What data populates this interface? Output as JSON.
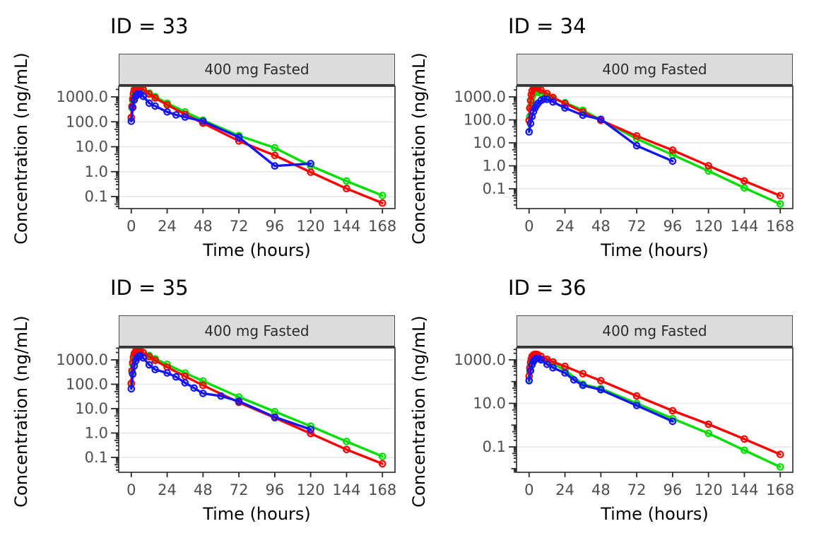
{
  "chart_data": [
    {
      "type": "line",
      "title": "ID = 33",
      "strip": "400 mg Fasted",
      "xlabel": "Time (hours)",
      "ylabel": "Concentration (ng/mL)",
      "x_scale": "linear",
      "y_scale": "log10",
      "grid": "horizontal-major",
      "legend": "none",
      "xlim": [
        -8.4,
        176.4
      ],
      "ylim": [
        0.033,
        2670
      ],
      "xticks": [
        0,
        24,
        48,
        72,
        96,
        120,
        144,
        168
      ],
      "yticks": [
        {
          "label": "1000.0",
          "value": 1000
        },
        {
          "label": "100.0",
          "value": 100
        },
        {
          "label": "10.0",
          "value": 10
        },
        {
          "label": "1.0",
          "value": 1
        },
        {
          "label": "0.1",
          "value": 0.1
        }
      ],
      "series": [
        {
          "name": "green-prediction",
          "color": "#00DD00",
          "x": [
            0,
            0.5,
            1,
            1.5,
            2,
            3,
            4,
            5,
            6,
            8,
            12,
            16,
            24,
            36,
            48,
            72,
            96,
            120,
            144,
            168
          ],
          "y": [
            140,
            360,
            720,
            1150,
            1650,
            2150,
            2400,
            2420,
            2320,
            2000,
            1420,
            1020,
            560,
            250,
            115,
            28,
            9,
            1.7,
            0.42,
            0.11
          ]
        },
        {
          "name": "red-prediction",
          "color": "#FF0000",
          "x": [
            0,
            0.5,
            1,
            1.5,
            2,
            3,
            4,
            5,
            6,
            8,
            12,
            16,
            24,
            36,
            48,
            72,
            96,
            120,
            144,
            168
          ],
          "y": [
            150,
            420,
            850,
            1400,
            1900,
            2350,
            2500,
            2450,
            2300,
            1900,
            1300,
            900,
            480,
            200,
            88,
            17,
            4.5,
            0.95,
            0.21,
            0.055
          ]
        },
        {
          "name": "blue-observed",
          "color": "#1414F5",
          "x": [
            0,
            1,
            2,
            3,
            4,
            5,
            6,
            8,
            12,
            16,
            24,
            30,
            36,
            48,
            72,
            96,
            120
          ],
          "y": [
            105,
            380,
            750,
            1050,
            1250,
            1320,
            1280,
            1050,
            560,
            430,
            250,
            190,
            155,
            105,
            24,
            1.7,
            2.1
          ]
        }
      ]
    },
    {
      "type": "line",
      "title": "ID = 34",
      "strip": "400 mg Fasted",
      "xlabel": "Time (hours)",
      "ylabel": "Concentration (ng/mL)",
      "x_scale": "linear",
      "y_scale": "log10",
      "grid": "horizontal-major",
      "legend": "none",
      "xlim": [
        -8.4,
        176.4
      ],
      "ylim": [
        0.0138,
        2900
      ],
      "xticks": [
        0,
        24,
        48,
        72,
        96,
        120,
        144,
        168
      ],
      "yticks": [
        {
          "label": "1000.0",
          "value": 1000
        },
        {
          "label": "100.0",
          "value": 100
        },
        {
          "label": "10.0",
          "value": 10
        },
        {
          "label": "1.0",
          "value": 1
        },
        {
          "label": "0.1",
          "value": 0.1
        }
      ],
      "series": [
        {
          "name": "green-prediction",
          "color": "#00DD00",
          "x": [
            0,
            0.5,
            1,
            1.5,
            2,
            3,
            4,
            5,
            6,
            8,
            12,
            16,
            24,
            36,
            48,
            72,
            96,
            120,
            144,
            168
          ],
          "y": [
            30,
            140,
            380,
            680,
            1000,
            1380,
            1600,
            1650,
            1600,
            1420,
            1100,
            820,
            560,
            260,
            100,
            15,
            3.0,
            0.6,
            0.11,
            0.022
          ]
        },
        {
          "name": "red-prediction",
          "color": "#FF0000",
          "x": [
            0,
            0.5,
            1,
            1.5,
            2,
            3,
            4,
            5,
            6,
            8,
            12,
            16,
            24,
            36,
            48,
            72,
            96,
            120,
            144,
            168
          ],
          "y": [
            95,
            320,
            700,
            1250,
            1800,
            2350,
            2600,
            2550,
            2400,
            2000,
            1400,
            950,
            520,
            220,
            95,
            20,
            4.8,
            1.0,
            0.22,
            0.05
          ]
        },
        {
          "name": "blue-observed",
          "color": "#1414F5",
          "x": [
            0,
            1,
            2,
            3,
            4,
            5,
            6,
            8,
            10,
            12,
            16,
            24,
            36,
            48,
            72,
            96
          ],
          "y": [
            30,
            70,
            140,
            230,
            330,
            430,
            530,
            700,
            800,
            780,
            600,
            330,
            160,
            105,
            7.5,
            1.6
          ]
        }
      ]
    },
    {
      "type": "line",
      "title": "ID = 35",
      "strip": "400 mg Fasted",
      "xlabel": "Time (hours)",
      "ylabel": "Concentration (ng/mL)",
      "x_scale": "linear",
      "y_scale": "log10",
      "grid": "horizontal-major",
      "legend": "none",
      "xlim": [
        -8.4,
        176.4
      ],
      "ylim": [
        0.0245,
        3100
      ],
      "xticks": [
        0,
        24,
        48,
        72,
        96,
        120,
        144,
        168
      ],
      "yticks": [
        {
          "label": "1000.0",
          "value": 1000
        },
        {
          "label": "100.0",
          "value": 100
        },
        {
          "label": "10.0",
          "value": 10
        },
        {
          "label": "1.0",
          "value": 1
        },
        {
          "label": "0.1",
          "value": 0.1
        }
      ],
      "series": [
        {
          "name": "green-prediction",
          "color": "#00DD00",
          "x": [
            0,
            0.5,
            1,
            1.5,
            2,
            3,
            4,
            5,
            6,
            8,
            12,
            16,
            24,
            36,
            48,
            72,
            96,
            120,
            144,
            168
          ],
          "y": [
            100,
            310,
            660,
            1080,
            1550,
            2050,
            2280,
            2300,
            2250,
            2000,
            1500,
            1100,
            650,
            290,
            135,
            30,
            7.5,
            1.9,
            0.45,
            0.11
          ]
        },
        {
          "name": "red-prediction",
          "color": "#FF0000",
          "x": [
            0,
            0.5,
            1,
            1.5,
            2,
            3,
            4,
            5,
            6,
            8,
            12,
            16,
            24,
            36,
            48,
            72,
            96,
            120,
            144,
            168
          ],
          "y": [
            110,
            360,
            780,
            1300,
            1800,
            2300,
            2550,
            2500,
            2350,
            1950,
            1350,
            950,
            500,
            210,
            90,
            18,
            4.2,
            0.95,
            0.21,
            0.055
          ]
        },
        {
          "name": "blue-observed",
          "color": "#1414F5",
          "x": [
            0,
            1,
            2,
            3,
            4,
            5,
            6,
            8,
            12,
            16,
            24,
            30,
            36,
            42,
            48,
            60,
            72,
            96,
            120
          ],
          "y": [
            65,
            260,
            560,
            900,
            1200,
            1400,
            1450,
            1200,
            620,
            400,
            290,
            200,
            115,
            70,
            42,
            33,
            20,
            4.5,
            1.4
          ]
        }
      ]
    },
    {
      "type": "line",
      "title": "ID = 36",
      "strip": "400 mg Fasted",
      "xlabel": "Time (hours)",
      "ylabel": "Concentration (ng/mL)",
      "x_scale": "linear",
      "y_scale": "log10",
      "grid": "horizontal-major",
      "legend": "none",
      "xlim": [
        -8.4,
        176.4
      ],
      "ylim": [
        0.0068,
        3550
      ],
      "xticks": [
        0,
        24,
        48,
        72,
        96,
        120,
        144,
        168
      ],
      "yticks": [
        {
          "label": "1000.0",
          "value": 1000
        },
        {
          "label": "10.0",
          "value": 10
        },
        {
          "label": "0.1",
          "value": 0.1
        }
      ],
      "series": [
        {
          "name": "green-prediction",
          "color": "#00DD00",
          "x": [
            0,
            0.5,
            1,
            1.5,
            2,
            3,
            4,
            5,
            6,
            8,
            12,
            16,
            24,
            36,
            48,
            72,
            96,
            120,
            144,
            168
          ],
          "y": [
            120,
            300,
            550,
            820,
            1050,
            1250,
            1320,
            1300,
            1250,
            1100,
            850,
            650,
            340,
            75,
            48,
            10,
            2.0,
            0.42,
            0.07,
            0.012
          ]
        },
        {
          "name": "red-prediction",
          "color": "#FF0000",
          "x": [
            0,
            0.5,
            1,
            1.5,
            2,
            3,
            4,
            5,
            6,
            8,
            12,
            16,
            24,
            36,
            48,
            72,
            96,
            120,
            144,
            168
          ],
          "y": [
            180,
            420,
            750,
            1100,
            1450,
            1700,
            1800,
            1780,
            1700,
            1450,
            1050,
            800,
            500,
            230,
            110,
            22,
            4.6,
            1.1,
            0.23,
            0.045
          ]
        },
        {
          "name": "blue-observed",
          "color": "#1414F5",
          "x": [
            0,
            1,
            2,
            3,
            4,
            5,
            6,
            8,
            12,
            16,
            24,
            30,
            36,
            48,
            72,
            96
          ],
          "y": [
            110,
            320,
            600,
            850,
            1050,
            1150,
            1150,
            1000,
            620,
            430,
            250,
            120,
            68,
            42,
            8,
            1.5
          ]
        }
      ]
    }
  ],
  "style_colors": {
    "grid": "#e7e7e7",
    "panel_border": "#404040",
    "strip_fill": "#dcdcdc",
    "tick": "#2b2b2b",
    "tick_label": "#4d4d4d"
  }
}
